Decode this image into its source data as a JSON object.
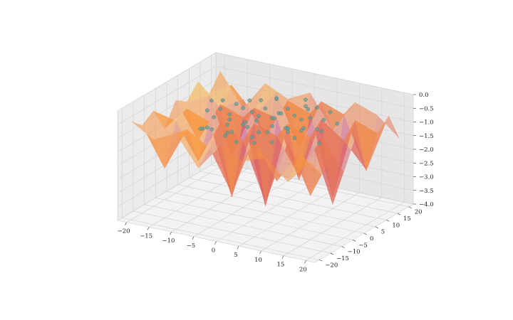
{
  "chart_data": {
    "type": "surface3d",
    "title": "",
    "xlabel": "",
    "ylabel": "",
    "zlabel": "",
    "xlim": [
      -22,
      22
    ],
    "ylim": [
      -22,
      22
    ],
    "zlim": [
      -4.0,
      0.0
    ],
    "x_ticks": [
      -20,
      -15,
      -10,
      -5,
      0,
      5,
      10,
      15,
      20
    ],
    "x_tick_labels": [
      "−20",
      "−15",
      "−10",
      "−5",
      "0",
      "5",
      "10",
      "15",
      "20"
    ],
    "y_ticks": [
      -20,
      -15,
      -10,
      -5,
      0,
      5,
      10,
      15,
      20
    ],
    "y_tick_labels": [
      "−20",
      "−15",
      "−10",
      "−5",
      "0",
      "5",
      "10",
      "15",
      "20"
    ],
    "z_ticks": [
      -4.0,
      -3.5,
      -3.0,
      -2.5,
      -2.0,
      -1.5,
      -1.0,
      -0.5,
      0.0
    ],
    "z_tick_labels": [
      "−4.0",
      "−3.5",
      "−3.0",
      "−2.5",
      "−2.0",
      "−1.5",
      "−1.0",
      "−0.5",
      "0.0"
    ],
    "grid": true,
    "surface": {
      "colormap": "plasma",
      "alpha": 0.55,
      "x": [
        -20,
        -15,
        -10,
        -5,
        0,
        5,
        10,
        15,
        20
      ],
      "y": [
        -20,
        -15,
        -10,
        -5,
        0,
        5,
        10,
        15,
        20
      ],
      "z": [
        [
          -0.4,
          -0.9,
          -0.5,
          -1.6,
          -0.6,
          -1.0,
          -0.7,
          -1.4,
          -0.5
        ],
        [
          -0.8,
          -2.2,
          -0.6,
          -1.1,
          -2.6,
          -0.4,
          -1.8,
          -0.6,
          -1.2
        ],
        [
          -0.5,
          -0.7,
          -2.0,
          -0.4,
          -0.9,
          -3.0,
          -0.6,
          -2.4,
          -0.7
        ],
        [
          -1.4,
          -0.5,
          -0.8,
          -3.4,
          -0.5,
          -0.8,
          -2.1,
          -0.5,
          -1.6
        ],
        [
          -0.6,
          -1.9,
          -0.4,
          -0.7,
          -3.8,
          -0.6,
          -0.9,
          -3.2,
          -0.6
        ],
        [
          -0.9,
          -0.5,
          -2.6,
          -0.6,
          -0.8,
          -2.9,
          -0.5,
          -1.1,
          -2.0
        ],
        [
          -0.4,
          -1.2,
          -0.7,
          -1.9,
          -0.4,
          -0.7,
          -3.6,
          -0.6,
          -0.9
        ],
        [
          -1.1,
          -0.6,
          -1.5,
          -0.5,
          -2.4,
          -0.5,
          -0.8,
          -2.7,
          -0.5
        ],
        [
          -0.5,
          -1.7,
          -0.6,
          -1.0,
          -0.6,
          -1.8,
          -0.6,
          -0.9,
          -1.6
        ]
      ]
    },
    "scatter": {
      "color": "#5f9ea0",
      "points": [
        [
          -8,
          -10,
          -0.7
        ],
        [
          -6,
          -12,
          -0.6
        ],
        [
          -4,
          -9,
          -0.8
        ],
        [
          -2,
          -11,
          -0.6
        ],
        [
          0,
          -8,
          -0.5
        ],
        [
          2,
          -10,
          -0.7
        ],
        [
          4,
          -7,
          -0.6
        ],
        [
          6,
          -9,
          -0.8
        ],
        [
          8,
          -6,
          -0.5
        ],
        [
          -9,
          -5,
          -0.6
        ],
        [
          -7,
          -3,
          -0.9
        ],
        [
          -5,
          -6,
          -0.5
        ],
        [
          -3,
          -4,
          -0.7
        ],
        [
          -1,
          -2,
          -0.6
        ],
        [
          1,
          -5,
          -0.8
        ],
        [
          3,
          -3,
          -0.6
        ],
        [
          5,
          -1,
          -0.7
        ],
        [
          7,
          -4,
          -0.5
        ],
        [
          9,
          -2,
          -0.6
        ],
        [
          -8,
          0,
          -0.7
        ],
        [
          -6,
          2,
          -0.5
        ],
        [
          -4,
          -1,
          -0.8
        ],
        [
          -2,
          1,
          -0.6
        ],
        [
          0,
          3,
          -0.7
        ],
        [
          2,
          0,
          -0.5
        ],
        [
          4,
          2,
          -0.9
        ],
        [
          6,
          4,
          -0.6
        ],
        [
          8,
          1,
          -0.7
        ],
        [
          -9,
          5,
          -0.6
        ],
        [
          -7,
          7,
          -0.5
        ],
        [
          -5,
          4,
          -0.7
        ],
        [
          -3,
          6,
          -0.6
        ],
        [
          -1,
          8,
          -0.8
        ],
        [
          1,
          5,
          -0.6
        ],
        [
          3,
          7,
          -0.7
        ],
        [
          5,
          9,
          -0.5
        ],
        [
          7,
          6,
          -0.6
        ],
        [
          9,
          8,
          -0.7
        ],
        [
          -6,
          10,
          -0.6
        ],
        [
          -3,
          11,
          -0.5
        ],
        [
          0,
          10,
          -0.7
        ],
        [
          3,
          12,
          -0.6
        ],
        [
          6,
          11,
          -0.5
        ],
        [
          -10,
          -8,
          -0.9
        ],
        [
          10,
          -7,
          -0.6
        ],
        [
          -11,
          2,
          -0.7
        ],
        [
          11,
          3,
          -0.8
        ],
        [
          -4,
          13,
          -0.6
        ],
        [
          4,
          -13,
          -0.7
        ],
        [
          12,
          -1,
          -0.5
        ],
        [
          -12,
          -2,
          -0.6
        ],
        [
          0,
          -13,
          -0.8
        ],
        [
          13,
          6,
          -0.6
        ],
        [
          -13,
          7,
          -0.7
        ],
        [
          2,
          14,
          -0.5
        ],
        [
          -2,
          -14,
          -0.6
        ],
        [
          8,
          13,
          -0.7
        ],
        [
          -8,
          -13,
          -0.6
        ],
        [
          14,
          -4,
          -0.8
        ],
        [
          -14,
          4,
          -0.6
        ]
      ]
    }
  }
}
